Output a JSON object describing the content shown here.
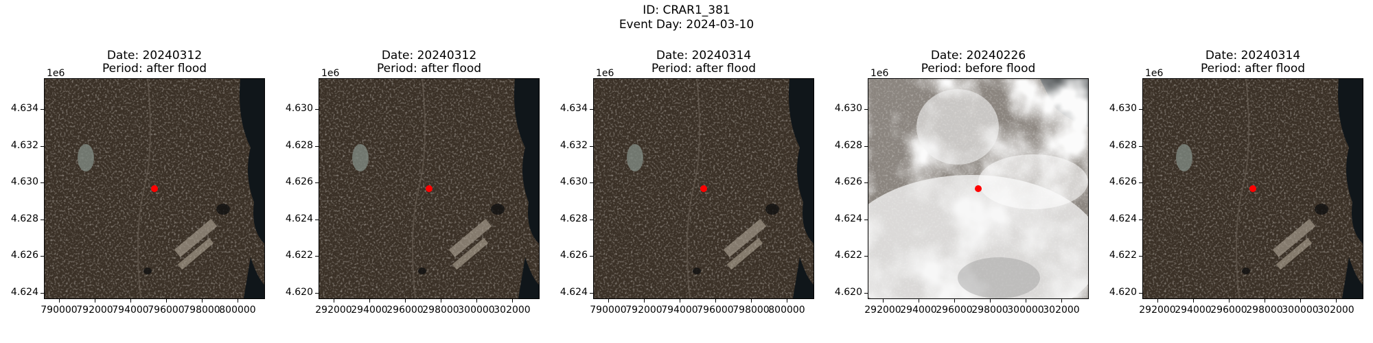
{
  "figure": {
    "id_line": "ID: CRAR1_381",
    "event_line": "Event Day: 2024-03-10"
  },
  "colors": {
    "marker": "#ff0000",
    "terrain_dark": "#3b3127",
    "water": "#10161a",
    "cloud": "#f2f2f2"
  },
  "panels": [
    {
      "date": "Date: 20240312",
      "period": "Period: after flood",
      "exponent": "1e6",
      "yticks": [
        "4.634",
        "4.632",
        "4.630",
        "4.628",
        "4.626",
        "4.624"
      ],
      "xticks": [
        "790000",
        "792000",
        "794000",
        "796000",
        "798000",
        "800000"
      ],
      "cloudy": false
    },
    {
      "date": "Date: 20240312",
      "period": "Period: after flood",
      "exponent": "1e6",
      "yticks": [
        "4.630",
        "4.628",
        "4.626",
        "4.624",
        "4.622",
        "4.620"
      ],
      "xticks": [
        "292000",
        "294000",
        "296000",
        "298000",
        "300000",
        "302000"
      ],
      "cloudy": false
    },
    {
      "date": "Date: 20240314",
      "period": "Period: after flood",
      "exponent": "1e6",
      "yticks": [
        "4.634",
        "4.632",
        "4.630",
        "4.628",
        "4.626",
        "4.624"
      ],
      "xticks": [
        "790000",
        "792000",
        "794000",
        "796000",
        "798000",
        "800000"
      ],
      "cloudy": false
    },
    {
      "date": "Date: 20240226",
      "period": "Period: before flood",
      "exponent": "1e6",
      "yticks": [
        "4.630",
        "4.628",
        "4.626",
        "4.624",
        "4.622",
        "4.620"
      ],
      "xticks": [
        "292000",
        "294000",
        "296000",
        "298000",
        "300000",
        "302000"
      ],
      "cloudy": true
    },
    {
      "date": "Date: 20240314",
      "period": "Period: after flood",
      "exponent": "1e6",
      "yticks": [
        "4.630",
        "4.628",
        "4.626",
        "4.624",
        "4.622",
        "4.620"
      ],
      "xticks": [
        "292000",
        "294000",
        "296000",
        "298000",
        "300000",
        "302000"
      ],
      "cloudy": false
    }
  ]
}
